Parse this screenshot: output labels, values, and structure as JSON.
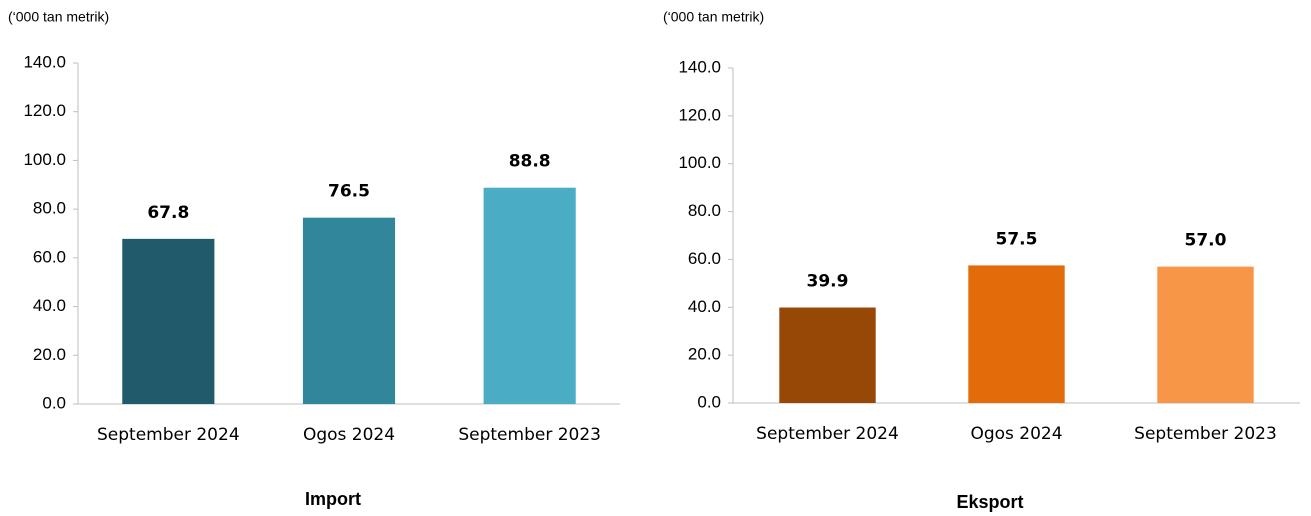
{
  "chart_data": [
    {
      "type": "bar",
      "title": "Import",
      "subtitle": "(‘000 tan metrik)",
      "categories": [
        "September 2024",
        "Ogos 2024",
        "September 2023"
      ],
      "values": [
        67.8,
        76.5,
        88.8
      ],
      "colors": [
        "#215a6b",
        "#31869b",
        "#4bacc6"
      ],
      "ylim": [
        0,
        140
      ],
      "yticks": [
        {
          "value": 0,
          "label": "0.0"
        },
        {
          "value": 20,
          "label": "20.0"
        },
        {
          "value": 40,
          "label": "40.0"
        },
        {
          "value": 60,
          "label": "60.0"
        },
        {
          "value": 80,
          "label": "80.0"
        },
        {
          "value": 100,
          "label": "100.0"
        },
        {
          "value": 120,
          "label": "120.0"
        },
        {
          "value": 140,
          "label": "140.0"
        }
      ],
      "grid": false
    },
    {
      "type": "bar",
      "title": "Eksport",
      "subtitle": "(‘000 tan metrik)",
      "categories": [
        "September 2024",
        "Ogos 2024",
        "September 2023"
      ],
      "values": [
        39.9,
        57.5,
        57.0
      ],
      "value_labels": [
        "39.9",
        "57.5",
        "57.0"
      ],
      "colors": [
        "#974806",
        "#e36c0a",
        "#f79646"
      ],
      "ylim": [
        0,
        140
      ],
      "yticks": [
        {
          "value": 0,
          "label": "0.0"
        },
        {
          "value": 20,
          "label": "20.0"
        },
        {
          "value": 40,
          "label": "40.0"
        },
        {
          "value": 60,
          "label": "60.0"
        },
        {
          "value": 80,
          "label": "80.0"
        },
        {
          "value": 100,
          "label": "100.0"
        },
        {
          "value": 120,
          "label": "120.0"
        },
        {
          "value": 140,
          "label": "140.0"
        }
      ],
      "grid": false
    }
  ]
}
